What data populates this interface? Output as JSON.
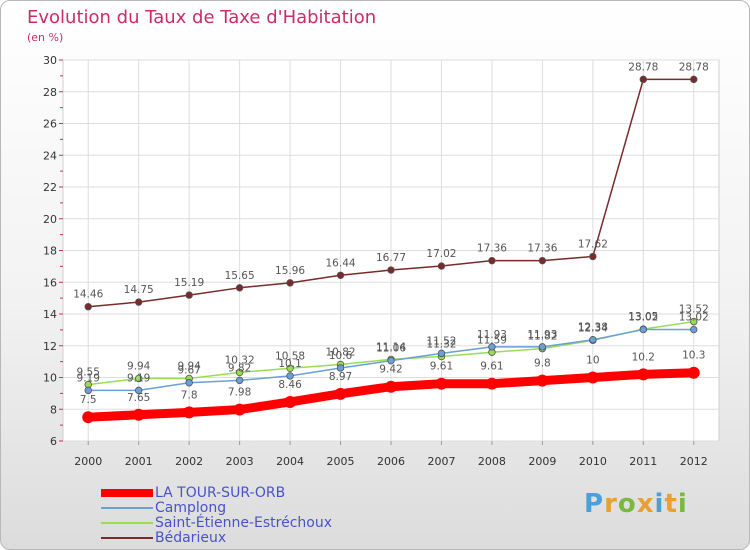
{
  "header": {
    "title": "Evolution du Taux de Taxe d'Habitation",
    "subtitle": "(en %)"
  },
  "brand": {
    "logo_text": "Proxiti",
    "letter_colors": [
      "#4aa0d8",
      "#e8a030",
      "#7ab83e",
      "#e8a030",
      "#4aa0d8",
      "#e8a030",
      "#7ab83e"
    ]
  },
  "chart_data": {
    "type": "line",
    "title": "Evolution du Taux de Taxe d'Habitation",
    "subtitle": "(en %)",
    "xlabel": "",
    "ylabel": "",
    "x": [
      "2000",
      "2001",
      "2002",
      "2003",
      "2004",
      "2005",
      "2006",
      "2007",
      "2008",
      "2009",
      "2010",
      "2011",
      "2012"
    ],
    "ylim": [
      6,
      30
    ],
    "yticks": [
      6,
      8,
      10,
      12,
      14,
      16,
      18,
      20,
      22,
      24,
      26,
      28,
      30
    ],
    "grid": true,
    "legend_position": "bottom-left",
    "series": [
      {
        "name": "LA TOUR-SUR-ORB",
        "color": "#ff0000",
        "values": [
          7.5,
          7.65,
          7.8,
          7.98,
          8.46,
          8.97,
          9.42,
          9.61,
          9.61,
          9.8,
          10,
          10.2,
          10.3
        ],
        "labels": [
          "7.5",
          "7.65",
          "7.8",
          "7.98",
          "8.46",
          "8.97",
          "9.42",
          "9.61",
          "9.61",
          "9.8",
          "10",
          "10.2",
          "10.3"
        ]
      },
      {
        "name": "Camplong",
        "color": "#6a9fd8",
        "values": [
          9.19,
          9.19,
          9.67,
          9.82,
          10.1,
          10.6,
          11.06,
          11.52,
          11.93,
          11.93,
          12.38,
          13.02,
          13.02
        ],
        "labels": [
          "9.19",
          "9.19",
          "9.67",
          "9.82",
          "10.1",
          "10.6",
          "11.06",
          "11.52",
          "11.93",
          "11.93",
          "12.38",
          "13.02",
          "13.02"
        ]
      },
      {
        "name": "Saint-Étienne-Estréchoux",
        "color": "#99dd55",
        "values": [
          9.55,
          9.94,
          9.94,
          10.32,
          10.58,
          10.82,
          11.14,
          11.32,
          11.59,
          11.82,
          12.34,
          13.05,
          13.52
        ],
        "labels": [
          "9.55",
          "9.94",
          "9.94",
          "10.32",
          "10.58",
          "10.82",
          "11.14",
          "11.32",
          "11.59",
          "11.82",
          "12.34",
          "13.05",
          "13.52"
        ]
      },
      {
        "name": "Bédarieux",
        "color": "#7a2a2a",
        "values": [
          14.46,
          14.75,
          15.19,
          15.65,
          15.96,
          16.44,
          16.77,
          17.02,
          17.36,
          17.36,
          17.62,
          28.78,
          28.78
        ],
        "labels": [
          "14.46",
          "14.75",
          "15.19",
          "15.65",
          "15.96",
          "16.44",
          "16.77",
          "17.02",
          "17.36",
          "17.36",
          "17.62",
          "28.78",
          "28.78"
        ]
      }
    ]
  }
}
